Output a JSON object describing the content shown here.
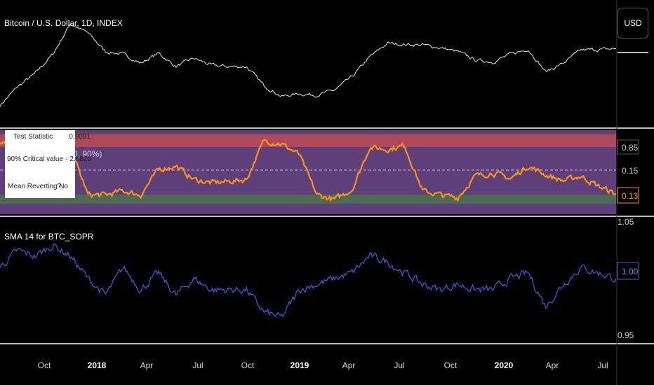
{
  "price_pane": {
    "title": "Bitcoin / U.S. Dollar, 1D, INDEX",
    "currency_button": "USD"
  },
  "adf_pane": {
    "bg_label": "0, 90%)",
    "stats": {
      "test_statistic_label": "Test Statistic",
      "test_statistic_value": "0.9081",
      "critical_label": "90% Critical value",
      "critical_value": "- 2.5826",
      "mean_reverting_label": "Mean Reverting?",
      "mean_reverting_value": "No"
    },
    "axis_labels": [
      "0.85",
      "0.15",
      "0.13"
    ],
    "colors": {
      "line": "#f7931a",
      "top_band": "#b0485c",
      "mid_band": "#5e3f7a",
      "low_band": "#4c6b52"
    }
  },
  "sopr_pane": {
    "title": "SMA 14 for BTC_SOPR",
    "axis_labels": [
      "1.05",
      "1.00",
      "0.95"
    ],
    "colors": {
      "line": "#3d62e0"
    }
  },
  "time_axis": {
    "labels": [
      {
        "text": "Oct",
        "bold": false
      },
      {
        "text": "2018",
        "bold": true
      },
      {
        "text": "Apr",
        "bold": false
      },
      {
        "text": "Jul",
        "bold": false
      },
      {
        "text": "Oct",
        "bold": false
      },
      {
        "text": "2019",
        "bold": true
      },
      {
        "text": "Apr",
        "bold": false
      },
      {
        "text": "Jul",
        "bold": false
      },
      {
        "text": "Oct",
        "bold": false
      },
      {
        "text": "2020",
        "bold": true
      },
      {
        "text": "Apr",
        "bold": false
      },
      {
        "text": "Jul",
        "bold": false
      }
    ]
  },
  "chart_data": [
    {
      "type": "line",
      "title": "Bitcoin / U.S. Dollar, 1D, INDEX",
      "log_scale": true,
      "x": [
        "2017-08",
        "2017-09",
        "2017-10",
        "2017-11",
        "2017-12",
        "2018-01",
        "2018-02",
        "2018-03",
        "2018-04",
        "2018-05",
        "2018-06",
        "2018-07",
        "2018-08",
        "2018-09",
        "2018-10",
        "2018-11",
        "2018-12",
        "2019-01",
        "2019-02",
        "2019-03",
        "2019-04",
        "2019-05",
        "2019-06",
        "2019-07",
        "2019-08",
        "2019-09",
        "2019-10",
        "2019-11",
        "2019-12",
        "2020-01",
        "2020-02",
        "2020-03",
        "2020-04",
        "2020-05",
        "2020-06",
        "2020-07"
      ],
      "values": [
        2800,
        4200,
        5600,
        8500,
        16500,
        13500,
        9000,
        8500,
        7000,
        8700,
        6500,
        7800,
        6700,
        6500,
        6500,
        4300,
        3400,
        3600,
        3500,
        3900,
        5200,
        8000,
        10800,
        10500,
        10400,
        9800,
        9000,
        7500,
        7200,
        8500,
        9500,
        5800,
        7000,
        9300,
        9400,
        9600
      ]
    },
    {
      "type": "line",
      "title": "",
      "x": [
        "2017-08",
        "2017-09",
        "2017-10",
        "2017-11",
        "2017-12",
        "2018-01",
        "2018-02",
        "2018-03",
        "2018-04",
        "2018-05",
        "2018-06",
        "2018-07",
        "2018-08",
        "2018-09",
        "2018-10",
        "2018-11",
        "2018-12",
        "2019-01",
        "2019-02",
        "2019-03",
        "2019-04",
        "2019-05",
        "2019-06",
        "2019-07",
        "2019-08",
        "2019-09",
        "2019-10",
        "2019-11",
        "2019-12",
        "2020-01",
        "2020-02",
        "2020-03",
        "2020-04",
        "2020-05",
        "2020-06",
        "2020-07"
      ],
      "values": [
        0.9,
        0.86,
        0.83,
        0.82,
        0.82,
        0.12,
        0.12,
        0.18,
        0.12,
        0.5,
        0.55,
        0.35,
        0.3,
        0.32,
        0.35,
        0.93,
        0.88,
        0.72,
        0.12,
        0.05,
        0.2,
        0.83,
        0.8,
        0.85,
        0.18,
        0.12,
        0.08,
        0.4,
        0.45,
        0.36,
        0.55,
        0.42,
        0.33,
        0.4,
        0.25,
        0.13
      ]
    },
    {
      "type": "line",
      "title": "SMA 14 for BTC_SOPR",
      "ylim": [
        0.95,
        1.05
      ],
      "x": [
        "2017-08",
        "2017-09",
        "2017-10",
        "2017-11",
        "2017-12",
        "2018-01",
        "2018-02",
        "2018-03",
        "2018-04",
        "2018-05",
        "2018-06",
        "2018-07",
        "2018-08",
        "2018-09",
        "2018-10",
        "2018-11",
        "2018-12",
        "2019-01",
        "2019-02",
        "2019-03",
        "2019-04",
        "2019-05",
        "2019-06",
        "2019-07",
        "2019-08",
        "2019-09",
        "2019-10",
        "2019-11",
        "2019-12",
        "2020-01",
        "2020-02",
        "2020-03",
        "2020-04",
        "2020-05",
        "2020-06",
        "2020-07"
      ],
      "values": [
        1.01,
        1.025,
        1.02,
        1.03,
        1.02,
        1.0,
        0.985,
        1.01,
        0.99,
        1.005,
        0.985,
        1.0,
        0.99,
        0.99,
        0.99,
        0.97,
        0.965,
        0.99,
        0.995,
        1.0,
        1.005,
        1.02,
        1.015,
        1.005,
        0.995,
        0.99,
        0.995,
        0.99,
        0.99,
        1.0,
        1.005,
        0.975,
        0.995,
        1.01,
        1.005,
        1.0
      ]
    }
  ]
}
